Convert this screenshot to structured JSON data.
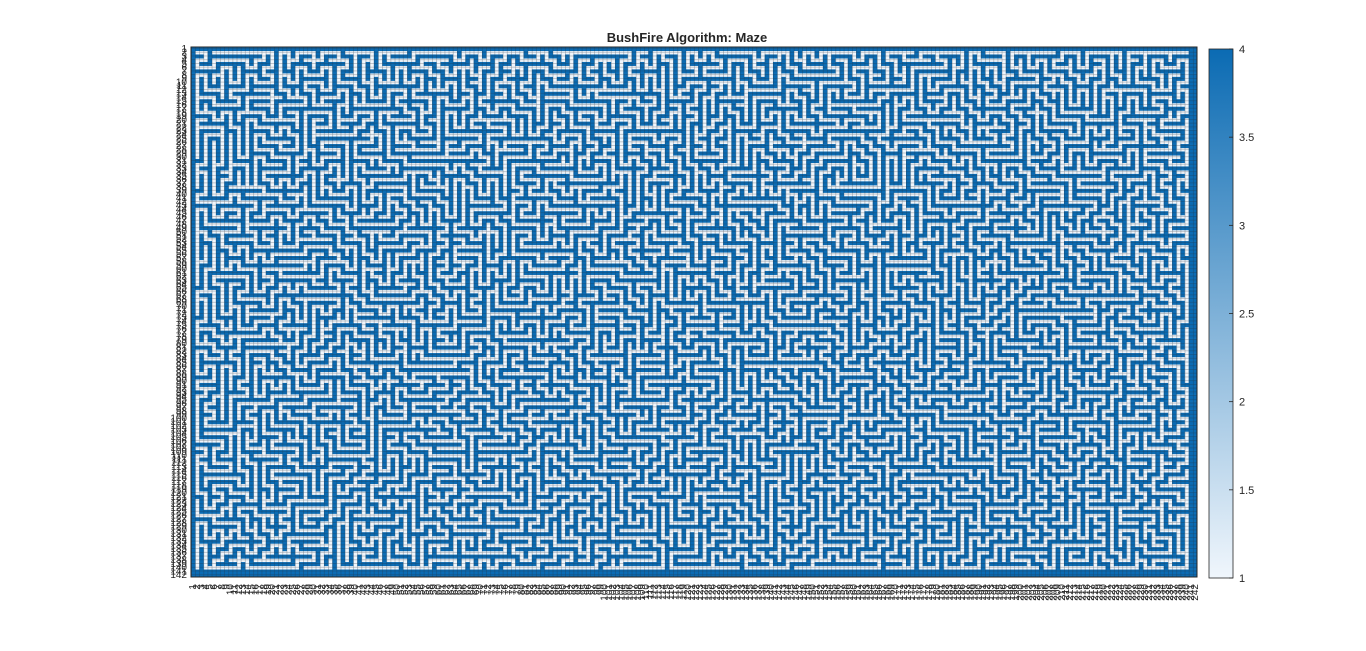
{
  "chart_data": {
    "type": "heatmap",
    "title": "BushFire Algorithm: Maze",
    "rows": 142,
    "cols": 242,
    "row_ticks_first": "1",
    "row_ticks_last": "142",
    "col_ticks_first": "1",
    "col_ticks_last": "242",
    "color_limits": [
      1,
      4
    ],
    "colorbar": {
      "ticks": [
        "1",
        "1.5",
        "2",
        "2.5",
        "3",
        "3.5",
        "4"
      ],
      "tick_values": [
        1,
        1.5,
        2,
        2.5,
        3,
        3.5,
        4
      ],
      "low_color": "#f0f6fc",
      "high_color": "#0b6bb3"
    },
    "maze_wall_value": 4,
    "maze_path_value": 1,
    "cell_grid": true
  }
}
